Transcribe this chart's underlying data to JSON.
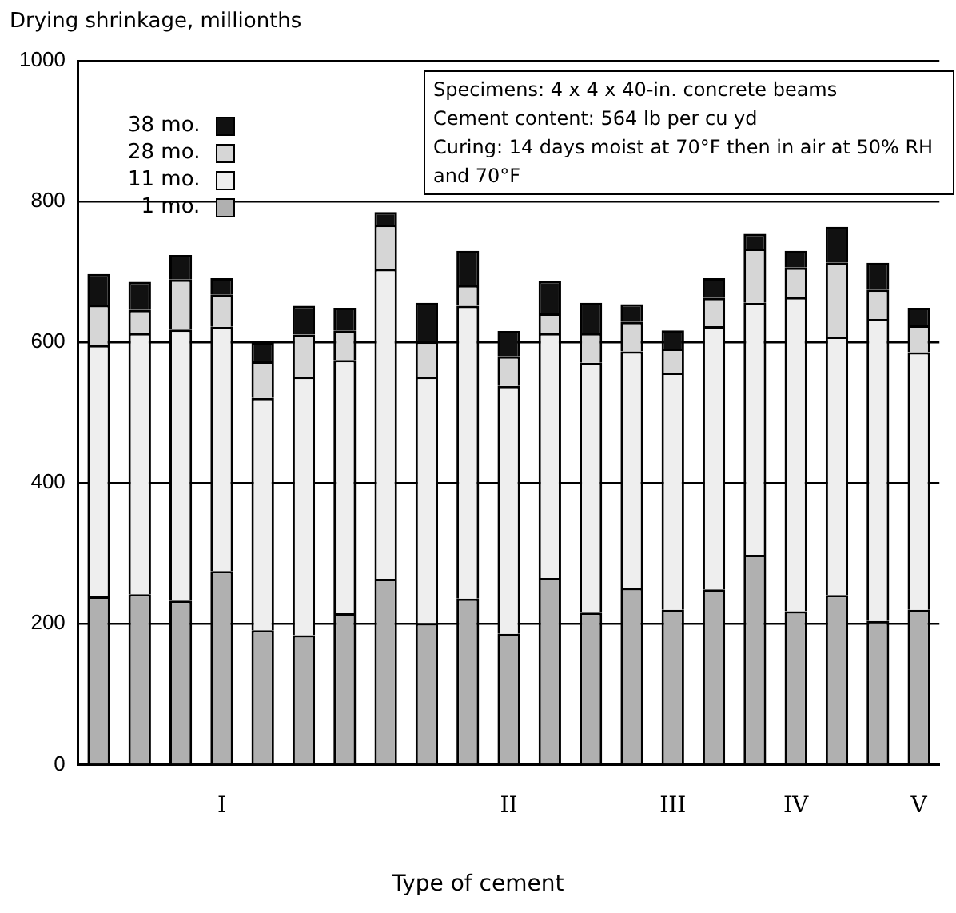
{
  "chart_data": {
    "type": "bar",
    "stacked": true,
    "ylabel": "Drying shrinkage, millionths",
    "xlabel": "Type of cement",
    "categories": [
      null,
      null,
      null,
      "I",
      null,
      null,
      null,
      null,
      null,
      null,
      "II",
      null,
      null,
      null,
      "III",
      null,
      null,
      "IV",
      null,
      null,
      "V"
    ],
    "series": [
      {
        "name": "1 mo.",
        "color": "#b0b0b0",
        "values": [
          239,
          242,
          233,
          275,
          191,
          184,
          215,
          264,
          201,
          236,
          186,
          265,
          216,
          251,
          220,
          249,
          298,
          218,
          241,
          204,
          220
        ]
      },
      {
        "name": "11 mo.",
        "color": "#eeeeee",
        "values": [
          357,
          371,
          385,
          347,
          330,
          367,
          360,
          440,
          350,
          416,
          352,
          348,
          355,
          336,
          337,
          374,
          358,
          446,
          367,
          429,
          366
        ]
      },
      {
        "name": "28 mo.",
        "color": "#d6d6d6",
        "values": [
          57,
          33,
          71,
          46,
          52,
          60,
          42,
          63,
          50,
          29,
          42,
          28,
          42,
          42,
          34,
          40,
          77,
          42,
          105,
          42,
          38
        ]
      },
      {
        "name": "38 mo.",
        "color": "#111111",
        "values": [
          44,
          40,
          35,
          23,
          27,
          41,
          32,
          18,
          55,
          49,
          36,
          46,
          43,
          25,
          26,
          28,
          21,
          24,
          51,
          38,
          25
        ]
      }
    ],
    "ylim": [
      0,
      1000
    ],
    "yticks": [
      0,
      200,
      400,
      600,
      800,
      1000
    ],
    "grid": "y",
    "legend": "top left",
    "annotations": [
      "Specimens: 4 x 4 x 40-in. concrete beams",
      "Cement content: 564 lb per cu yd",
      "Curing: 14 days moist at 70°F then in air at 50% RH and 70°F"
    ]
  }
}
